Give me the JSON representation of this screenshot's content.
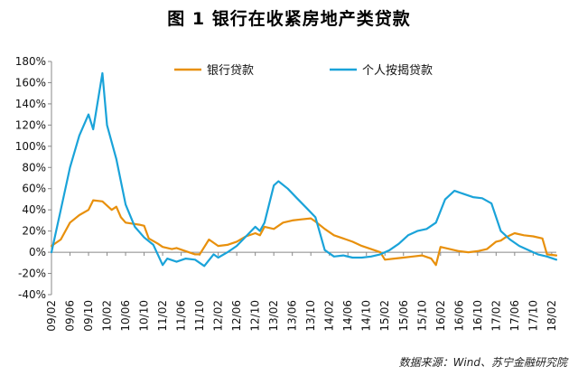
{
  "title": "图 1  银行在收紧房地产类贷款",
  "source": "数据来源：Wind、苏宁金融研究院",
  "colors": {
    "series_0": "#e8900c",
    "series_1": "#1aa3d9",
    "axis": "#888888",
    "zero_line": "#888888"
  },
  "chart_data": {
    "type": "line",
    "ylim": [
      -0.4,
      1.8
    ],
    "ytick_values": [
      -0.4,
      -0.2,
      0,
      0.2,
      0.4,
      0.6,
      0.8,
      1.0,
      1.2,
      1.4,
      1.6,
      1.8
    ],
    "ytick_labels": [
      "-40%",
      "-20%",
      "0%",
      "20%",
      "40%",
      "60%",
      "80%",
      "100%",
      "120%",
      "140%",
      "160%",
      "180%"
    ],
    "xtick_labels": [
      "09/02",
      "09/06",
      "09/10",
      "10/02",
      "10/06",
      "10/10",
      "11/02",
      "11/06",
      "11/10",
      "12/02",
      "12/06",
      "12/10",
      "13/02",
      "13/06",
      "13/10",
      "14/02",
      "14/06",
      "14/10",
      "15/02",
      "15/06",
      "15/10",
      "16/02",
      "16/06",
      "16/10",
      "17/02",
      "17/06",
      "17/10",
      "18/02"
    ],
    "legend_position": "top",
    "series": [
      {
        "name": "银行贷款",
        "color": "#e8900c",
        "points": [
          [
            "09/02",
            0.06
          ],
          [
            "09/04",
            0.12
          ],
          [
            "09/06",
            0.28
          ],
          [
            "09/08",
            0.35
          ],
          [
            "09/10",
            0.4
          ],
          [
            "09/11",
            0.49
          ],
          [
            "10/01",
            0.48
          ],
          [
            "10/03",
            0.4
          ],
          [
            "10/04",
            0.43
          ],
          [
            "10/05",
            0.33
          ],
          [
            "10/06",
            0.28
          ],
          [
            "10/09",
            0.26
          ],
          [
            "10/10",
            0.25
          ],
          [
            "10/11",
            0.13
          ],
          [
            "11/01",
            0.08
          ],
          [
            "11/02",
            0.05
          ],
          [
            "11/04",
            0.03
          ],
          [
            "11/05",
            0.04
          ],
          [
            "11/07",
            0.01
          ],
          [
            "11/09",
            -0.02
          ],
          [
            "11/10",
            -0.02
          ],
          [
            "11/12",
            0.12
          ],
          [
            "12/02",
            0.06
          ],
          [
            "12/04",
            0.07
          ],
          [
            "12/06",
            0.1
          ],
          [
            "12/08",
            0.15
          ],
          [
            "12/10",
            0.18
          ],
          [
            "12/11",
            0.16
          ],
          [
            "12/12",
            0.24
          ],
          [
            "13/02",
            0.22
          ],
          [
            "13/04",
            0.28
          ],
          [
            "13/06",
            0.3
          ],
          [
            "13/08",
            0.31
          ],
          [
            "13/10",
            0.32
          ],
          [
            "13/11",
            0.29
          ],
          [
            "14/01",
            0.22
          ],
          [
            "14/03",
            0.16
          ],
          [
            "14/05",
            0.13
          ],
          [
            "14/07",
            0.1
          ],
          [
            "14/09",
            0.06
          ],
          [
            "14/11",
            0.03
          ],
          [
            "15/01",
            0.0
          ],
          [
            "15/02",
            -0.07
          ],
          [
            "15/04",
            -0.06
          ],
          [
            "15/06",
            -0.05
          ],
          [
            "15/08",
            -0.04
          ],
          [
            "15/10",
            -0.03
          ],
          [
            "15/12",
            -0.06
          ],
          [
            "16/01",
            -0.12
          ],
          [
            "16/02",
            0.05
          ],
          [
            "16/04",
            0.03
          ],
          [
            "16/06",
            0.01
          ],
          [
            "16/08",
            0.0
          ],
          [
            "16/10",
            0.01
          ],
          [
            "16/12",
            0.03
          ],
          [
            "17/02",
            0.1
          ],
          [
            "17/03",
            0.11
          ],
          [
            "17/04",
            0.14
          ],
          [
            "17/06",
            0.18
          ],
          [
            "17/08",
            0.16
          ],
          [
            "17/10",
            0.15
          ],
          [
            "17/12",
            0.13
          ],
          [
            "18/01",
            -0.02
          ],
          [
            "18/03",
            -0.03
          ]
        ]
      },
      {
        "name": "个人按揭贷款",
        "color": "#1aa3d9",
        "points": [
          [
            "09/02",
            0.0
          ],
          [
            "09/04",
            0.4
          ],
          [
            "09/06",
            0.8
          ],
          [
            "09/08",
            1.1
          ],
          [
            "09/10",
            1.3
          ],
          [
            "09/11",
            1.16
          ],
          [
            "10/01",
            1.69
          ],
          [
            "10/02",
            1.2
          ],
          [
            "10/04",
            0.88
          ],
          [
            "10/06",
            0.45
          ],
          [
            "10/08",
            0.24
          ],
          [
            "10/10",
            0.14
          ],
          [
            "10/12",
            0.07
          ],
          [
            "11/02",
            -0.12
          ],
          [
            "11/03",
            -0.06
          ],
          [
            "11/05",
            -0.09
          ],
          [
            "11/07",
            -0.06
          ],
          [
            "11/09",
            -0.07
          ],
          [
            "11/11",
            -0.13
          ],
          [
            "12/01",
            -0.02
          ],
          [
            "12/02",
            -0.05
          ],
          [
            "12/04",
            0.0
          ],
          [
            "12/06",
            0.06
          ],
          [
            "12/08",
            0.15
          ],
          [
            "12/10",
            0.24
          ],
          [
            "12/11",
            0.2
          ],
          [
            "12/12",
            0.28
          ],
          [
            "13/02",
            0.63
          ],
          [
            "13/03",
            0.67
          ],
          [
            "13/05",
            0.6
          ],
          [
            "13/07",
            0.51
          ],
          [
            "13/09",
            0.42
          ],
          [
            "13/11",
            0.33
          ],
          [
            "14/01",
            0.02
          ],
          [
            "14/03",
            -0.04
          ],
          [
            "14/05",
            -0.03
          ],
          [
            "14/07",
            -0.05
          ],
          [
            "14/09",
            -0.05
          ],
          [
            "14/11",
            -0.04
          ],
          [
            "15/01",
            -0.02
          ],
          [
            "15/03",
            0.02
          ],
          [
            "15/05",
            0.08
          ],
          [
            "15/07",
            0.16
          ],
          [
            "15/09",
            0.2
          ],
          [
            "15/11",
            0.22
          ],
          [
            "16/01",
            0.28
          ],
          [
            "16/03",
            0.5
          ],
          [
            "16/05",
            0.58
          ],
          [
            "16/07",
            0.55
          ],
          [
            "16/09",
            0.52
          ],
          [
            "16/11",
            0.51
          ],
          [
            "17/01",
            0.46
          ],
          [
            "17/03",
            0.2
          ],
          [
            "17/05",
            0.12
          ],
          [
            "17/07",
            0.06
          ],
          [
            "17/09",
            0.02
          ],
          [
            "17/11",
            -0.02
          ],
          [
            "18/01",
            -0.04
          ],
          [
            "18/03",
            -0.07
          ]
        ]
      }
    ]
  }
}
